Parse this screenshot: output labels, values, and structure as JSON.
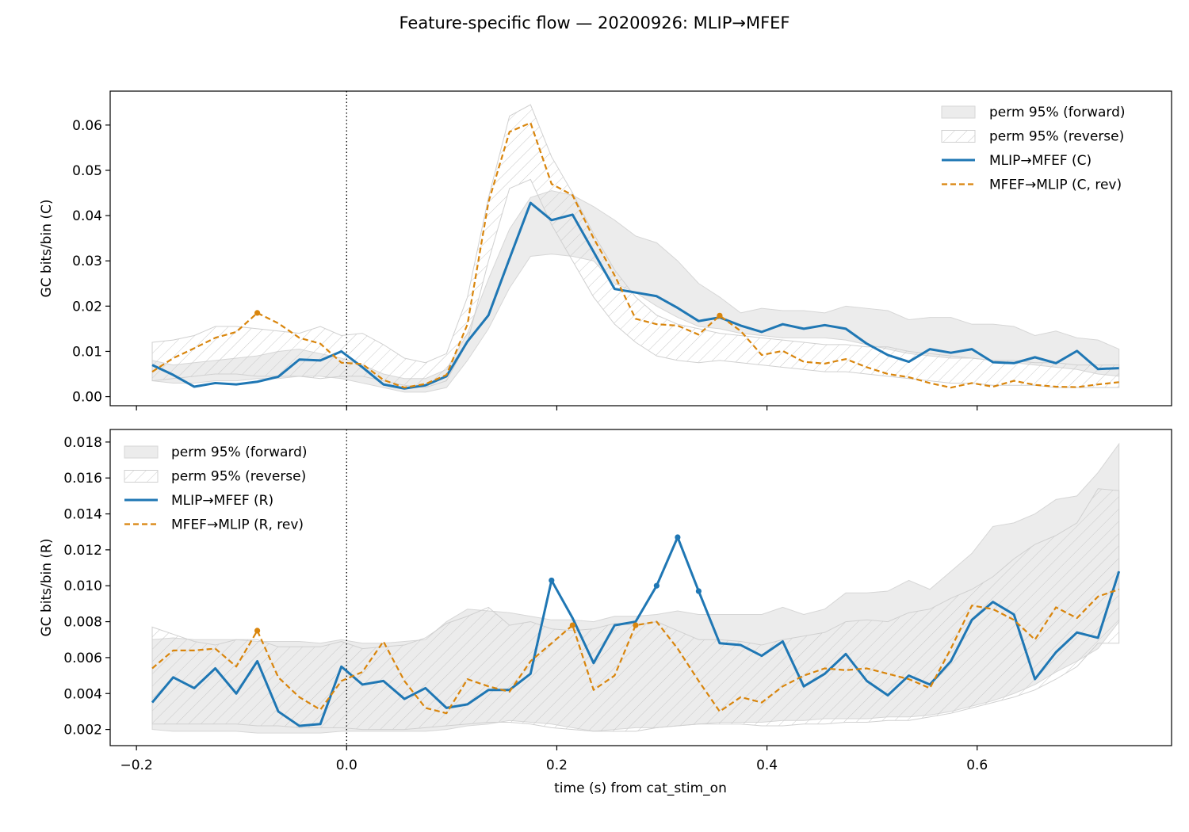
{
  "figure": {
    "suptitle": "Feature-specific flow — 20200926: MLIP→MFEF",
    "xlabel": "time (s) from cat_stim_on"
  },
  "chart_data": [
    {
      "type": "line",
      "panel": "top",
      "ylabel": "GC bits/bin (C)",
      "xlim": [
        -0.225,
        0.785
      ],
      "ylim": [
        -0.002,
        0.0675
      ],
      "xticks": [
        -0.2,
        0.0,
        0.2,
        0.4,
        0.6
      ],
      "xtick_labels": [
        "−0.2",
        "0.0",
        "0.2",
        "0.4",
        "0.6"
      ],
      "yticks": [
        0.0,
        0.01,
        0.02,
        0.03,
        0.04,
        0.05,
        0.06
      ],
      "ytick_labels": [
        "0.00",
        "0.01",
        "0.02",
        "0.03",
        "0.04",
        "0.05",
        "0.06"
      ],
      "event_line_x": 0.0,
      "legend_position": "top-right",
      "x": [
        -0.185,
        -0.165,
        -0.145,
        -0.125,
        -0.105,
        -0.085,
        -0.065,
        -0.045,
        -0.025,
        -0.005,
        0.015,
        0.035,
        0.055,
        0.075,
        0.095,
        0.115,
        0.135,
        0.155,
        0.175,
        0.195,
        0.215,
        0.235,
        0.255,
        0.275,
        0.295,
        0.315,
        0.335,
        0.355,
        0.375,
        0.395,
        0.415,
        0.435,
        0.455,
        0.475,
        0.495,
        0.515,
        0.535,
        0.555,
        0.575,
        0.595,
        0.615,
        0.635,
        0.655,
        0.675,
        0.695,
        0.715,
        0.735
      ],
      "bands": [
        {
          "name": "perm 95% (forward)",
          "style": "solid",
          "lower": [
            0.0035,
            0.003,
            0.003,
            0.0035,
            0.0035,
            0.004,
            0.004,
            0.0045,
            0.0045,
            0.004,
            0.003,
            0.002,
            0.001,
            0.001,
            0.002,
            0.008,
            0.015,
            0.024,
            0.031,
            0.0315,
            0.031,
            0.03,
            0.025,
            0.023,
            0.02,
            0.0175,
            0.0155,
            0.015,
            0.014,
            0.0135,
            0.013,
            0.013,
            0.013,
            0.0125,
            0.0115,
            0.0105,
            0.0095,
            0.009,
            0.0085,
            0.0085,
            0.008,
            0.0075,
            0.007,
            0.0065,
            0.006,
            0.005,
            0.0045
          ],
          "upper": [
            0.008,
            0.007,
            0.0075,
            0.008,
            0.0085,
            0.009,
            0.01,
            0.0105,
            0.0095,
            0.0085,
            0.007,
            0.005,
            0.004,
            0.004,
            0.006,
            0.014,
            0.026,
            0.037,
            0.044,
            0.0455,
            0.0445,
            0.042,
            0.039,
            0.0355,
            0.034,
            0.03,
            0.025,
            0.022,
            0.0185,
            0.0195,
            0.019,
            0.019,
            0.0185,
            0.02,
            0.0195,
            0.019,
            0.017,
            0.0175,
            0.0175,
            0.016,
            0.016,
            0.0155,
            0.0135,
            0.0145,
            0.013,
            0.0125,
            0.0105
          ]
        },
        {
          "name": "perm 95% (reverse)",
          "style": "hatched",
          "lower": [
            0.0035,
            0.004,
            0.0045,
            0.005,
            0.005,
            0.0045,
            0.0045,
            0.0045,
            0.004,
            0.0045,
            0.0045,
            0.0035,
            0.0025,
            0.002,
            0.0035,
            0.012,
            0.03,
            0.046,
            0.048,
            0.038,
            0.03,
            0.022,
            0.016,
            0.012,
            0.009,
            0.008,
            0.0075,
            0.008,
            0.0075,
            0.007,
            0.0065,
            0.006,
            0.0055,
            0.0055,
            0.005,
            0.0045,
            0.004,
            0.0035,
            0.003,
            0.003,
            0.0025,
            0.0025,
            0.0025,
            0.002,
            0.002,
            0.002,
            0.002
          ],
          "upper": [
            0.012,
            0.0125,
            0.0135,
            0.0155,
            0.0155,
            0.015,
            0.0145,
            0.014,
            0.0155,
            0.0135,
            0.014,
            0.0115,
            0.0085,
            0.0075,
            0.0095,
            0.022,
            0.044,
            0.062,
            0.0645,
            0.053,
            0.045,
            0.036,
            0.028,
            0.022,
            0.018,
            0.016,
            0.015,
            0.014,
            0.0135,
            0.013,
            0.0125,
            0.012,
            0.0115,
            0.0115,
            0.011,
            0.011,
            0.01,
            0.0095,
            0.009,
            0.0085,
            0.008,
            0.008,
            0.0075,
            0.0075,
            0.007,
            0.007,
            0.007
          ]
        }
      ],
      "series": [
        {
          "name": "MLIP→MFEF (C)",
          "style": "solid",
          "color": "#1f77b4",
          "values": [
            0.007,
            0.0048,
            0.0022,
            0.003,
            0.0027,
            0.0033,
            0.0044,
            0.0082,
            0.008,
            0.01,
            0.0065,
            0.0027,
            0.0018,
            0.0025,
            0.0045,
            0.0122,
            0.018,
            0.0305,
            0.0428,
            0.039,
            0.0402,
            0.032,
            0.0238,
            0.023,
            0.0222,
            0.0196,
            0.0167,
            0.0175,
            0.0157,
            0.0143,
            0.016,
            0.015,
            0.0158,
            0.015,
            0.0117,
            0.0092,
            0.0077,
            0.0105,
            0.0097,
            0.0105,
            0.0076,
            0.0074,
            0.0087,
            0.0074,
            0.0101,
            0.0061,
            0.0063
          ],
          "markers_at": []
        },
        {
          "name": "MFEF→MLIP (C, rev)",
          "style": "dashed",
          "color": "#d9850c",
          "values": [
            0.0055,
            0.0085,
            0.0107,
            0.013,
            0.0143,
            0.0185,
            0.0162,
            0.013,
            0.0117,
            0.0075,
            0.0072,
            0.0037,
            0.002,
            0.0028,
            0.0048,
            0.016,
            0.043,
            0.0585,
            0.0605,
            0.047,
            0.0445,
            0.035,
            0.0268,
            0.0172,
            0.016,
            0.0157,
            0.0137,
            0.0179,
            0.0145,
            0.0092,
            0.0101,
            0.0077,
            0.0073,
            0.0083,
            0.0065,
            0.005,
            0.0043,
            0.003,
            0.002,
            0.003,
            0.0022,
            0.0035,
            0.0026,
            0.0022,
            0.0021,
            0.0027,
            0.0032
          ],
          "markers_at": [
            5,
            27
          ]
        }
      ]
    },
    {
      "type": "line",
      "panel": "bottom",
      "ylabel": "GC bits/bin (R)",
      "xlim": [
        -0.225,
        0.785
      ],
      "ylim": [
        0.0011,
        0.0187
      ],
      "xticks": [
        -0.2,
        0.0,
        0.2,
        0.4,
        0.6
      ],
      "xtick_labels": [
        "−0.2",
        "0.0",
        "0.2",
        "0.4",
        "0.6"
      ],
      "yticks": [
        0.002,
        0.004,
        0.006,
        0.008,
        0.01,
        0.012,
        0.014,
        0.016,
        0.018
      ],
      "ytick_labels": [
        "0.002",
        "0.004",
        "0.006",
        "0.008",
        "0.010",
        "0.012",
        "0.014",
        "0.016",
        "0.018"
      ],
      "event_line_x": 0.0,
      "legend_position": "top-left",
      "x": [
        -0.185,
        -0.165,
        -0.145,
        -0.125,
        -0.105,
        -0.085,
        -0.065,
        -0.045,
        -0.025,
        -0.005,
        0.015,
        0.035,
        0.055,
        0.075,
        0.095,
        0.115,
        0.135,
        0.155,
        0.175,
        0.195,
        0.215,
        0.235,
        0.255,
        0.275,
        0.295,
        0.315,
        0.335,
        0.355,
        0.375,
        0.395,
        0.415,
        0.435,
        0.455,
        0.475,
        0.495,
        0.515,
        0.535,
        0.555,
        0.575,
        0.595,
        0.615,
        0.635,
        0.655,
        0.675,
        0.695,
        0.715,
        0.735
      ],
      "bands": [
        {
          "name": "perm 95% (forward)",
          "style": "solid",
          "lower": [
            0.002,
            0.0019,
            0.0019,
            0.0019,
            0.0019,
            0.0018,
            0.0018,
            0.0018,
            0.0018,
            0.0019,
            0.0019,
            0.0019,
            0.0019,
            0.0019,
            0.002,
            0.0022,
            0.0023,
            0.0025,
            0.0024,
            0.0023,
            0.0021,
            0.0019,
            0.002,
            0.0021,
            0.0021,
            0.0022,
            0.0023,
            0.0024,
            0.0024,
            0.0024,
            0.0025,
            0.0025,
            0.0026,
            0.0026,
            0.0026,
            0.0027,
            0.0027,
            0.0028,
            0.003,
            0.0033,
            0.0036,
            0.004,
            0.0045,
            0.0052,
            0.0058,
            0.0065,
            0.008
          ],
          "upper": [
            0.007,
            0.0071,
            0.007,
            0.007,
            0.007,
            0.0069,
            0.0069,
            0.0069,
            0.0068,
            0.007,
            0.0068,
            0.0068,
            0.0069,
            0.007,
            0.008,
            0.0087,
            0.0086,
            0.0085,
            0.0083,
            0.0081,
            0.0081,
            0.008,
            0.0083,
            0.0083,
            0.0084,
            0.0086,
            0.0084,
            0.0084,
            0.0084,
            0.0084,
            0.0088,
            0.0084,
            0.0087,
            0.0096,
            0.0096,
            0.0097,
            0.0103,
            0.0098,
            0.0108,
            0.0118,
            0.0133,
            0.0135,
            0.014,
            0.0148,
            0.015,
            0.0163,
            0.0179
          ]
        },
        {
          "name": "perm 95% (reverse)",
          "style": "hatched",
          "lower": [
            0.0023,
            0.0023,
            0.0023,
            0.0023,
            0.0023,
            0.0022,
            0.0022,
            0.0021,
            0.0021,
            0.0021,
            0.002,
            0.002,
            0.002,
            0.0021,
            0.0022,
            0.0023,
            0.0024,
            0.0024,
            0.0023,
            0.0021,
            0.002,
            0.0019,
            0.0019,
            0.0019,
            0.0021,
            0.0022,
            0.0023,
            0.0023,
            0.0023,
            0.0022,
            0.0022,
            0.0023,
            0.0023,
            0.0024,
            0.0024,
            0.0025,
            0.0025,
            0.0027,
            0.0029,
            0.0032,
            0.0035,
            0.0038,
            0.0042,
            0.0048,
            0.0055,
            0.0068,
            0.0068
          ],
          "upper": [
            0.0077,
            0.0073,
            0.0069,
            0.0067,
            0.007,
            0.007,
            0.0066,
            0.0066,
            0.0066,
            0.0069,
            0.0065,
            0.0066,
            0.0067,
            0.0071,
            0.0079,
            0.0083,
            0.0088,
            0.0078,
            0.008,
            0.0076,
            0.0075,
            0.0076,
            0.0079,
            0.0078,
            0.008,
            0.0075,
            0.007,
            0.007,
            0.0069,
            0.0067,
            0.007,
            0.0072,
            0.0074,
            0.008,
            0.0081,
            0.008,
            0.0085,
            0.0087,
            0.0093,
            0.0098,
            0.0105,
            0.0115,
            0.0123,
            0.0128,
            0.0135,
            0.0154,
            0.0153
          ]
        }
      ],
      "series": [
        {
          "name": "MLIP→MFEF (R)",
          "style": "solid",
          "color": "#1f77b4",
          "values": [
            0.0035,
            0.0049,
            0.0043,
            0.0054,
            0.004,
            0.0058,
            0.003,
            0.0022,
            0.0023,
            0.0055,
            0.0045,
            0.0047,
            0.0037,
            0.0043,
            0.0032,
            0.0034,
            0.0042,
            0.0042,
            0.0051,
            0.0103,
            0.0082,
            0.0057,
            0.0078,
            0.008,
            0.01,
            0.0127,
            0.0097,
            0.0068,
            0.0067,
            0.0061,
            0.0069,
            0.0044,
            0.0051,
            0.0062,
            0.0047,
            0.0039,
            0.005,
            0.0045,
            0.0058,
            0.0081,
            0.0091,
            0.0084,
            0.0048,
            0.0063,
            0.0074,
            0.0071,
            0.0108
          ],
          "markers_at": [
            19,
            24,
            25,
            26
          ]
        },
        {
          "name": "MFEF→MLIP (R, rev)",
          "style": "dashed",
          "color": "#d9850c",
          "values": [
            0.0054,
            0.0064,
            0.0064,
            0.0065,
            0.0055,
            0.0075,
            0.0049,
            0.0038,
            0.0031,
            0.0047,
            0.0052,
            0.0069,
            0.0047,
            0.0032,
            0.0029,
            0.0048,
            0.0044,
            0.0041,
            0.0058,
            0.0068,
            0.0078,
            0.0042,
            0.005,
            0.0078,
            0.008,
            0.0065,
            0.0047,
            0.003,
            0.0038,
            0.0035,
            0.0044,
            0.005,
            0.0054,
            0.0053,
            0.0054,
            0.0051,
            0.0048,
            0.0043,
            0.0065,
            0.0089,
            0.0087,
            0.0081,
            0.007,
            0.0088,
            0.0082,
            0.0094,
            0.0098
          ],
          "markers_at": [
            5,
            20,
            23
          ]
        }
      ]
    }
  ]
}
